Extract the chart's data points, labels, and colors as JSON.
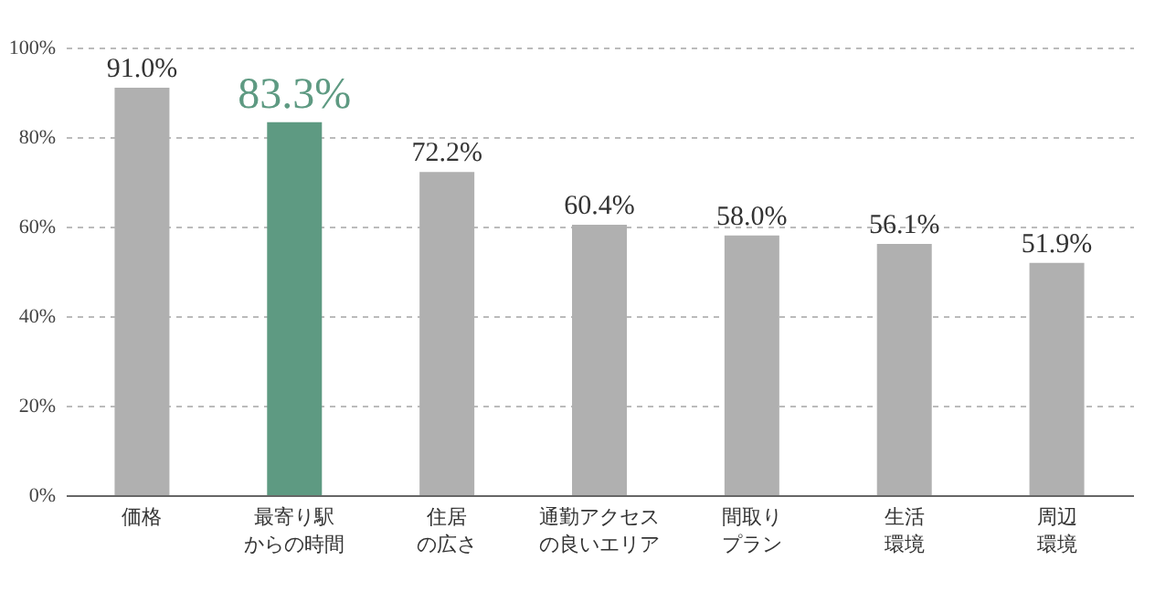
{
  "chart_data": {
    "type": "bar",
    "categories": [
      "価格",
      "最寄り駅からの時間",
      "住居の広さ",
      "通勤アクセスの良いエリア",
      "間取りプラン",
      "生活環境",
      "周辺環境"
    ],
    "values": [
      91.0,
      83.3,
      72.2,
      60.4,
      58.0,
      56.1,
      51.9
    ],
    "colors": [
      "#b0b0b0",
      "#5e9a82",
      "#b0b0b0",
      "#b0b0b0",
      "#b0b0b0",
      "#b0b0b0",
      "#b0b0b0"
    ],
    "value_labels": [
      "91.0%",
      "83.3%",
      "72.2%",
      "60.4%",
      "58.0%",
      "56.1%",
      "51.9%"
    ],
    "ylim": [
      0,
      100
    ],
    "yticks": [
      {
        "value": 0,
        "label": "0%"
      },
      {
        "value": 20,
        "label": "20%"
      },
      {
        "value": 40,
        "label": "40%"
      },
      {
        "value": 60,
        "label": "60%"
      },
      {
        "value": 80,
        "label": "80%"
      },
      {
        "value": 100,
        "label": "100%"
      }
    ],
    "grid": "y"
  }
}
